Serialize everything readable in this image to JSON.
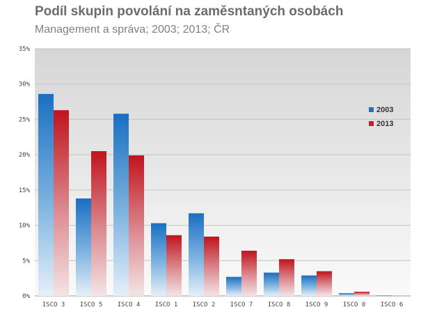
{
  "chart_data": {
    "type": "bar",
    "title": "Podíl skupin povolání na zaměsntaných osobách",
    "subtitle": "Management a správa; 2003; 2013; ČR",
    "categories": [
      "ISCO 3",
      "ISCO 5",
      "ISCO 4",
      "ISCO 1",
      "ISCO 2",
      "ISCO 7",
      "ISCO 8",
      "ISCO 9",
      "ISCO 0",
      "ISCO 6"
    ],
    "series": [
      {
        "name": "2003",
        "values": [
          28.6,
          13.8,
          25.8,
          10.3,
          11.7,
          2.7,
          3.3,
          2.9,
          0.4,
          0.1
        ],
        "color": "#1f73c4"
      },
      {
        "name": "2013",
        "values": [
          26.3,
          20.5,
          19.9,
          8.6,
          8.4,
          6.4,
          5.2,
          3.5,
          0.6,
          0.0
        ],
        "color": "#c41e26"
      }
    ],
    "ylim": [
      0,
      35
    ],
    "yticks": [
      "0%",
      "5%",
      "10%",
      "15%",
      "20%",
      "25%",
      "30%",
      "35%"
    ],
    "legend_position": "right",
    "grid": true
  }
}
